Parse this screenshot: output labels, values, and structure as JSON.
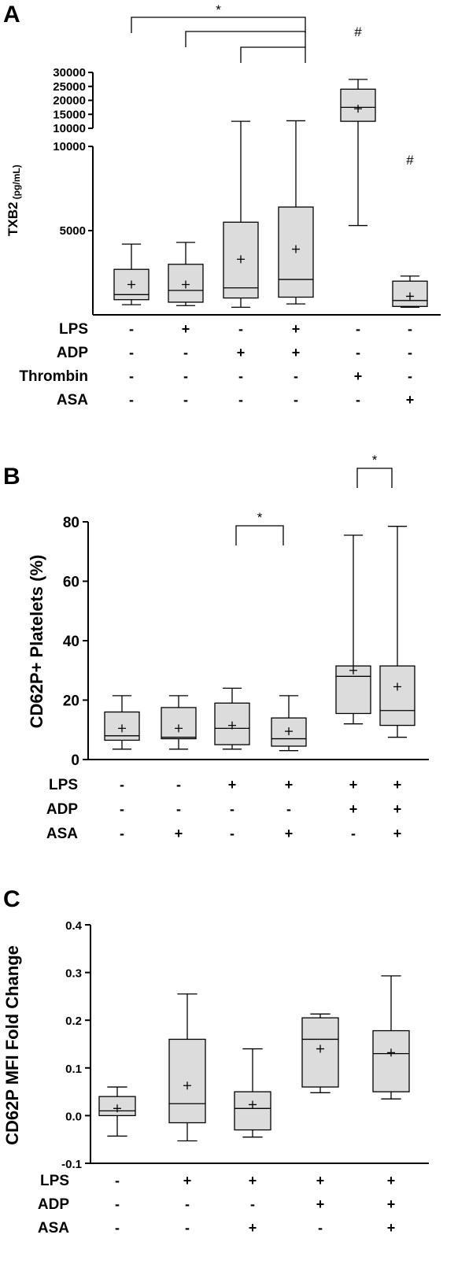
{
  "chart_data": [
    {
      "type": "box",
      "panel_label": "A",
      "ylabel": "TXB2",
      "ylabel_unit": "(pg/mL)",
      "ylim_lower": [
        0,
        10000
      ],
      "ylim_upper": [
        10000,
        30000
      ],
      "yticks_lower": [
        5000,
        10000
      ],
      "yticks_upper": [
        10000,
        15000,
        20000,
        25000,
        30000
      ],
      "conditions": [
        {
          "name": "LPS",
          "signs": [
            "-",
            "+",
            "-",
            "+",
            "-",
            "-"
          ]
        },
        {
          "name": "ADP",
          "signs": [
            "-",
            "-",
            "+",
            "+",
            "-",
            "-"
          ]
        },
        {
          "name": "Thrombin",
          "signs": [
            "-",
            "-",
            "-",
            "-",
            "+",
            "-"
          ]
        },
        {
          "name": "ASA",
          "signs": [
            "-",
            "-",
            "-",
            "-",
            "-",
            "+"
          ]
        }
      ],
      "boxes": [
        {
          "min": 600,
          "q1": 900,
          "median": 1200,
          "q3": 2700,
          "max": 4200,
          "mean": 1800
        },
        {
          "min": 550,
          "q1": 750,
          "median": 1450,
          "q3": 3000,
          "max": 4300,
          "mean": 1800
        },
        {
          "min": 450,
          "q1": 1000,
          "median": 1600,
          "q3": 5500,
          "max": 12500,
          "mean": 3300
        },
        {
          "min": 650,
          "q1": 1050,
          "median": 2100,
          "q3": 6400,
          "max": 12700,
          "mean": 3900
        },
        {
          "min": 5300,
          "q1": 12500,
          "median": 17500,
          "q3": 24000,
          "max": 27500,
          "mean": 17000
        },
        {
          "min": 450,
          "q1": 500,
          "median": 850,
          "q3": 2000,
          "max": 2300,
          "mean": 1100
        }
      ],
      "significance": [
        {
          "label": "*",
          "from": 1,
          "to": 4
        },
        {
          "label": "",
          "from": 2,
          "to": 4
        },
        {
          "label": "",
          "from": 3,
          "to": 4
        }
      ],
      "hash_marks": [
        {
          "label": "#",
          "group": 5
        },
        {
          "label": "#",
          "group": 6
        }
      ]
    },
    {
      "type": "box",
      "panel_label": "B",
      "ylabel": "CD62P+ Platelets (%)",
      "ylim": [
        0,
        80
      ],
      "yticks": [
        0,
        20,
        40,
        60,
        80
      ],
      "conditions": [
        {
          "name": "LPS",
          "signs": [
            "-",
            "-",
            "+",
            "+",
            "+",
            "+"
          ]
        },
        {
          "name": "ADP",
          "signs": [
            "-",
            "-",
            "-",
            "-",
            "+",
            "+"
          ]
        },
        {
          "name": "ASA",
          "signs": [
            "-",
            "+",
            "-",
            "+",
            "-",
            "+"
          ]
        }
      ],
      "boxes": [
        {
          "min": 3.5,
          "q1": 6.5,
          "median": 8,
          "q3": 16,
          "max": 21.5,
          "mean": 10.5
        },
        {
          "min": 3.5,
          "q1": 7,
          "median": 7.5,
          "q3": 17.5,
          "max": 21.5,
          "mean": 10.5
        },
        {
          "min": 3.5,
          "q1": 5,
          "median": 10.5,
          "q3": 19,
          "max": 24,
          "mean": 11.5
        },
        {
          "min": 3,
          "q1": 4.5,
          "median": 7,
          "q3": 14,
          "max": 21.5,
          "mean": 9.5
        },
        {
          "min": 12,
          "q1": 15.5,
          "median": 28,
          "q3": 31.5,
          "max": 75.5,
          "mean": 30
        },
        {
          "min": 7.5,
          "q1": 11.5,
          "median": 16.5,
          "q3": 31.5,
          "max": 78.5,
          "mean": 24.5
        }
      ],
      "significance": [
        {
          "label": "*",
          "from": 3,
          "to": 4
        },
        {
          "label": "*",
          "from": 5,
          "to": 6
        }
      ]
    },
    {
      "type": "box",
      "panel_label": "C",
      "ylabel": "CD62P MFI Fold Change",
      "ylim": [
        -0.1,
        0.4
      ],
      "yticks": [
        "-0.1",
        "0.0",
        "0.1",
        "0.2",
        "0.3",
        "0.4"
      ],
      "conditions": [
        {
          "name": "LPS",
          "signs": [
            "-",
            "+",
            "+",
            "+",
            "+"
          ]
        },
        {
          "name": "ADP",
          "signs": [
            "-",
            "-",
            "-",
            "+",
            "+"
          ]
        },
        {
          "name": "ASA",
          "signs": [
            "-",
            "-",
            "+",
            "-",
            "+"
          ]
        }
      ],
      "boxes": [
        {
          "min": -0.043,
          "q1": 0.0,
          "median": 0.01,
          "q3": 0.04,
          "max": 0.06,
          "mean": 0.015
        },
        {
          "min": -0.053,
          "q1": -0.015,
          "median": 0.025,
          "q3": 0.16,
          "max": 0.255,
          "mean": 0.063
        },
        {
          "min": -0.045,
          "q1": -0.03,
          "median": 0.015,
          "q3": 0.05,
          "max": 0.14,
          "mean": 0.023
        },
        {
          "min": 0.048,
          "q1": 0.06,
          "median": 0.16,
          "q3": 0.205,
          "max": 0.213,
          "mean": 0.14
        },
        {
          "min": 0.035,
          "q1": 0.05,
          "median": 0.13,
          "q3": 0.178,
          "max": 0.293,
          "mean": 0.132
        }
      ]
    }
  ]
}
